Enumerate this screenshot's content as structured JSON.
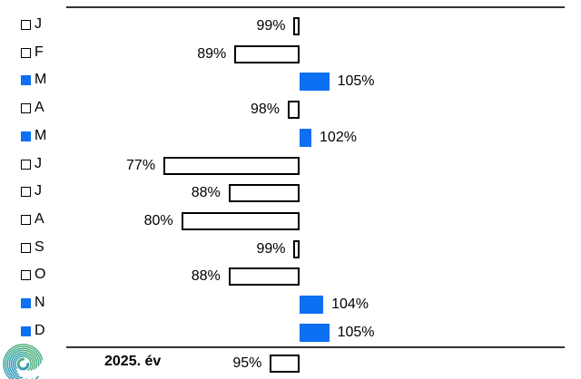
{
  "chart_data": {
    "type": "bar",
    "orientation": "horizontal",
    "unit": "%",
    "baseline": 100,
    "categories": [
      "J",
      "F",
      "M",
      "A",
      "M",
      "J",
      "J",
      "A",
      "S",
      "O",
      "N",
      "D"
    ],
    "values": [
      99,
      89,
      105,
      98,
      102,
      77,
      88,
      80,
      99,
      88,
      104,
      105
    ],
    "value_labels": [
      "99%",
      "89%",
      "105%",
      "98%",
      "102%",
      "77%",
      "88%",
      "80%",
      "99%",
      "88%",
      "104%",
      "105%"
    ],
    "summary": {
      "label": "2025. év",
      "value": 95,
      "value_label": "95%"
    },
    "colors": {
      "above_baseline_fill": "#0d6ff2",
      "below_baseline_fill": "#ffffff",
      "bar_border": "#000000",
      "axis_line": "#333333",
      "text": "#000000"
    },
    "layout_hints": {
      "baseline_marked_by": "bars left of 100% are white outlined, bars right of 100% are blue filled",
      "grid": "off",
      "value_labels_position": "outside bar ends"
    }
  },
  "logo": {
    "name": "spiral-logo",
    "colors": [
      "#57b36a",
      "#3aa9a0",
      "#2f8fc4"
    ]
  }
}
